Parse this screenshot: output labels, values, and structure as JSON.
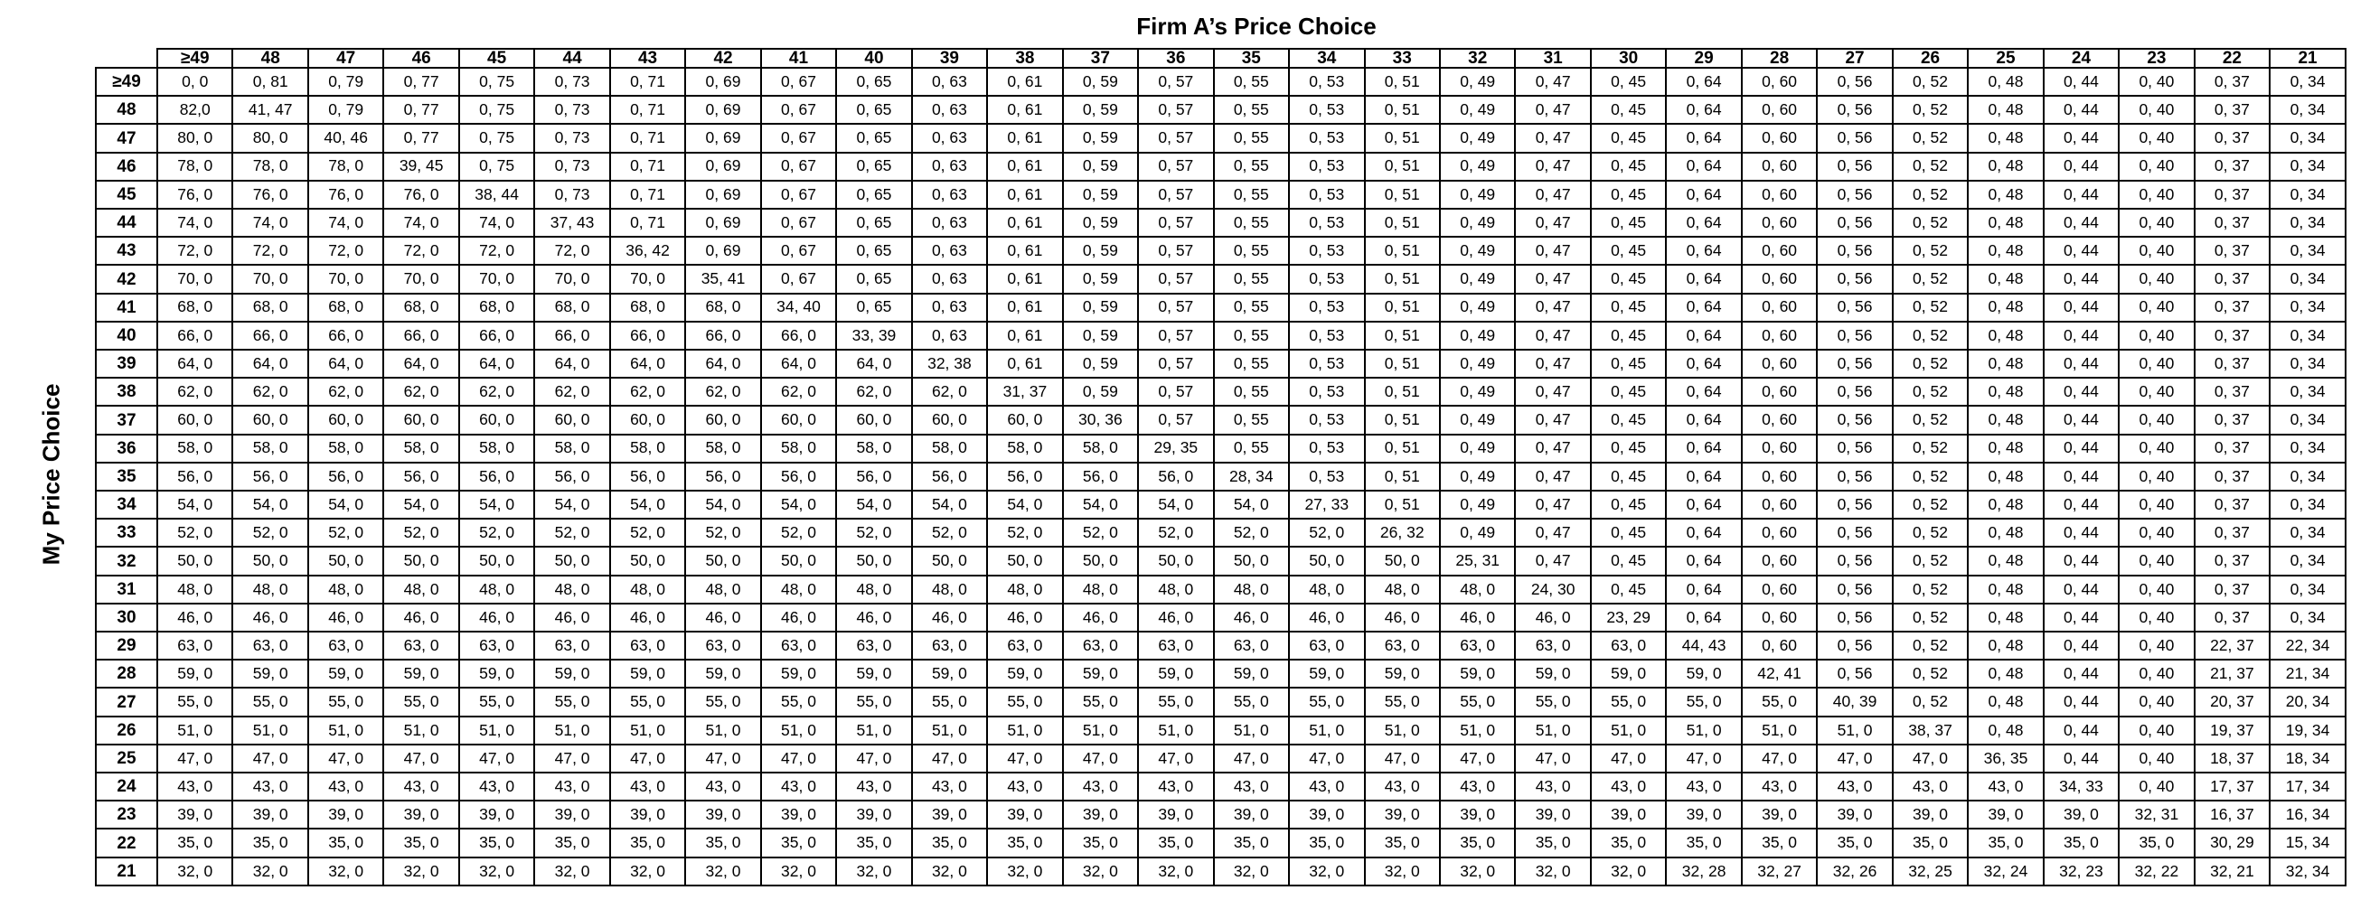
{
  "column_title": "Firm A’s Price Choice",
  "row_title": "My Price Choice",
  "column_headers": [
    "≥49",
    "48",
    "47",
    "46",
    "45",
    "44",
    "43",
    "42",
    "41",
    "40",
    "39",
    "38",
    "37",
    "36",
    "35",
    "34",
    "33",
    "32",
    "31",
    "30",
    "29",
    "28",
    "27",
    "26",
    "25",
    "24",
    "23",
    "22",
    "21"
  ],
  "row_headers": [
    "≥49",
    "48",
    "47",
    "46",
    "45",
    "44",
    "43",
    "42",
    "41",
    "40",
    "39",
    "38",
    "37",
    "36",
    "35",
    "34",
    "33",
    "32",
    "31",
    "30",
    "29",
    "28",
    "27",
    "26",
    "25",
    "24",
    "23",
    "22",
    "21"
  ],
  "rows": [
    [
      "0, 0",
      "0, 81",
      "0, 79",
      "0, 77",
      "0, 75",
      "0, 73",
      "0, 71",
      "0, 69",
      "0, 67",
      "0, 65",
      "0, 63",
      "0, 61",
      "0, 59",
      "0, 57",
      "0, 55",
      "0, 53",
      "0, 51",
      "0, 49",
      "0, 47",
      "0, 45",
      "0, 64",
      "0, 60",
      "0, 56",
      "0, 52",
      "0, 48",
      "0, 44",
      "0, 40",
      "0, 37",
      "0, 34"
    ],
    [
      "82,0",
      "41, 47",
      "0, 79",
      "0, 77",
      "0, 75",
      "0, 73",
      "0, 71",
      "0, 69",
      "0, 67",
      "0, 65",
      "0, 63",
      "0, 61",
      "0, 59",
      "0, 57",
      "0, 55",
      "0, 53",
      "0, 51",
      "0, 49",
      "0, 47",
      "0, 45",
      "0, 64",
      "0, 60",
      "0, 56",
      "0, 52",
      "0, 48",
      "0, 44",
      "0, 40",
      "0, 37",
      "0, 34"
    ],
    [
      "80, 0",
      "80, 0",
      "40, 46",
      "0, 77",
      "0, 75",
      "0, 73",
      "0, 71",
      "0, 69",
      "0, 67",
      "0, 65",
      "0, 63",
      "0, 61",
      "0, 59",
      "0, 57",
      "0, 55",
      "0, 53",
      "0, 51",
      "0, 49",
      "0, 47",
      "0, 45",
      "0, 64",
      "0, 60",
      "0, 56",
      "0, 52",
      "0, 48",
      "0, 44",
      "0, 40",
      "0, 37",
      "0, 34"
    ],
    [
      "78, 0",
      "78, 0",
      "78, 0",
      "39, 45",
      "0, 75",
      "0, 73",
      "0, 71",
      "0, 69",
      "0, 67",
      "0, 65",
      "0, 63",
      "0, 61",
      "0, 59",
      "0, 57",
      "0, 55",
      "0, 53",
      "0, 51",
      "0, 49",
      "0, 47",
      "0, 45",
      "0, 64",
      "0, 60",
      "0, 56",
      "0, 52",
      "0, 48",
      "0, 44",
      "0, 40",
      "0, 37",
      "0, 34"
    ],
    [
      "76, 0",
      "76, 0",
      "76, 0",
      "76, 0",
      "38, 44",
      "0, 73",
      "0, 71",
      "0, 69",
      "0, 67",
      "0, 65",
      "0, 63",
      "0, 61",
      "0, 59",
      "0, 57",
      "0, 55",
      "0, 53",
      "0, 51",
      "0, 49",
      "0, 47",
      "0, 45",
      "0, 64",
      "0, 60",
      "0, 56",
      "0, 52",
      "0, 48",
      "0, 44",
      "0, 40",
      "0, 37",
      "0, 34"
    ],
    [
      "74, 0",
      "74, 0",
      "74, 0",
      "74, 0",
      "74, 0",
      "37, 43",
      "0, 71",
      "0, 69",
      "0, 67",
      "0, 65",
      "0, 63",
      "0, 61",
      "0, 59",
      "0, 57",
      "0, 55",
      "0, 53",
      "0, 51",
      "0, 49",
      "0, 47",
      "0, 45",
      "0, 64",
      "0, 60",
      "0, 56",
      "0, 52",
      "0, 48",
      "0, 44",
      "0, 40",
      "0, 37",
      "0, 34"
    ],
    [
      "72, 0",
      "72, 0",
      "72, 0",
      "72, 0",
      "72, 0",
      "72, 0",
      "36, 42",
      "0, 69",
      "0, 67",
      "0, 65",
      "0, 63",
      "0, 61",
      "0, 59",
      "0, 57",
      "0, 55",
      "0, 53",
      "0, 51",
      "0, 49",
      "0, 47",
      "0, 45",
      "0, 64",
      "0, 60",
      "0, 56",
      "0, 52",
      "0, 48",
      "0, 44",
      "0, 40",
      "0, 37",
      "0, 34"
    ],
    [
      "70, 0",
      "70, 0",
      "70, 0",
      "70, 0",
      "70, 0",
      "70, 0",
      "70, 0",
      "35, 41",
      "0, 67",
      "0, 65",
      "0, 63",
      "0, 61",
      "0, 59",
      "0, 57",
      "0, 55",
      "0, 53",
      "0, 51",
      "0, 49",
      "0, 47",
      "0, 45",
      "0, 64",
      "0, 60",
      "0, 56",
      "0, 52",
      "0, 48",
      "0, 44",
      "0, 40",
      "0, 37",
      "0, 34"
    ],
    [
      "68, 0",
      "68, 0",
      "68, 0",
      "68, 0",
      "68, 0",
      "68, 0",
      "68, 0",
      "68, 0",
      "34, 40",
      "0, 65",
      "0, 63",
      "0, 61",
      "0, 59",
      "0, 57",
      "0, 55",
      "0, 53",
      "0, 51",
      "0, 49",
      "0, 47",
      "0, 45",
      "0, 64",
      "0, 60",
      "0, 56",
      "0, 52",
      "0, 48",
      "0, 44",
      "0, 40",
      "0, 37",
      "0, 34"
    ],
    [
      "66, 0",
      "66, 0",
      "66, 0",
      "66, 0",
      "66, 0",
      "66, 0",
      "66, 0",
      "66, 0",
      "66, 0",
      "33, 39",
      "0, 63",
      "0, 61",
      "0, 59",
      "0, 57",
      "0, 55",
      "0, 53",
      "0, 51",
      "0, 49",
      "0, 47",
      "0, 45",
      "0, 64",
      "0, 60",
      "0, 56",
      "0, 52",
      "0, 48",
      "0, 44",
      "0, 40",
      "0, 37",
      "0, 34"
    ],
    [
      "64, 0",
      "64, 0",
      "64, 0",
      "64, 0",
      "64, 0",
      "64, 0",
      "64, 0",
      "64, 0",
      "64, 0",
      "64, 0",
      "32, 38",
      "0, 61",
      "0, 59",
      "0, 57",
      "0, 55",
      "0, 53",
      "0, 51",
      "0, 49",
      "0, 47",
      "0, 45",
      "0, 64",
      "0, 60",
      "0, 56",
      "0, 52",
      "0, 48",
      "0, 44",
      "0, 40",
      "0, 37",
      "0, 34"
    ],
    [
      "62, 0",
      "62, 0",
      "62, 0",
      "62, 0",
      "62, 0",
      "62, 0",
      "62, 0",
      "62, 0",
      "62, 0",
      "62, 0",
      "62, 0",
      "31, 37",
      "0, 59",
      "0, 57",
      "0, 55",
      "0, 53",
      "0, 51",
      "0, 49",
      "0, 47",
      "0, 45",
      "0, 64",
      "0, 60",
      "0, 56",
      "0, 52",
      "0, 48",
      "0, 44",
      "0, 40",
      "0, 37",
      "0, 34"
    ],
    [
      "60, 0",
      "60, 0",
      "60, 0",
      "60, 0",
      "60, 0",
      "60, 0",
      "60, 0",
      "60, 0",
      "60, 0",
      "60, 0",
      "60, 0",
      "60, 0",
      "30, 36",
      "0, 57",
      "0, 55",
      "0, 53",
      "0, 51",
      "0, 49",
      "0, 47",
      "0, 45",
      "0, 64",
      "0, 60",
      "0, 56",
      "0, 52",
      "0, 48",
      "0, 44",
      "0, 40",
      "0, 37",
      "0, 34"
    ],
    [
      "58, 0",
      "58, 0",
      "58, 0",
      "58, 0",
      "58, 0",
      "58, 0",
      "58, 0",
      "58, 0",
      "58, 0",
      "58, 0",
      "58, 0",
      "58, 0",
      "58, 0",
      "29, 35",
      "0, 55",
      "0, 53",
      "0, 51",
      "0, 49",
      "0, 47",
      "0, 45",
      "0, 64",
      "0, 60",
      "0, 56",
      "0, 52",
      "0, 48",
      "0, 44",
      "0, 40",
      "0, 37",
      "0, 34"
    ],
    [
      "56, 0",
      "56, 0",
      "56, 0",
      "56, 0",
      "56, 0",
      "56, 0",
      "56, 0",
      "56, 0",
      "56, 0",
      "56, 0",
      "56, 0",
      "56, 0",
      "56, 0",
      "56, 0",
      "28, 34",
      "0, 53",
      "0, 51",
      "0, 49",
      "0, 47",
      "0, 45",
      "0, 64",
      "0, 60",
      "0, 56",
      "0, 52",
      "0, 48",
      "0, 44",
      "0, 40",
      "0, 37",
      "0, 34"
    ],
    [
      "54, 0",
      "54, 0",
      "54, 0",
      "54, 0",
      "54, 0",
      "54, 0",
      "54, 0",
      "54, 0",
      "54, 0",
      "54, 0",
      "54, 0",
      "54, 0",
      "54, 0",
      "54, 0",
      "54, 0",
      "27, 33",
      "0, 51",
      "0, 49",
      "0, 47",
      "0, 45",
      "0, 64",
      "0, 60",
      "0, 56",
      "0, 52",
      "0, 48",
      "0, 44",
      "0, 40",
      "0, 37",
      "0, 34"
    ],
    [
      "52, 0",
      "52, 0",
      "52, 0",
      "52, 0",
      "52, 0",
      "52, 0",
      "52, 0",
      "52, 0",
      "52, 0",
      "52, 0",
      "52, 0",
      "52, 0",
      "52, 0",
      "52, 0",
      "52, 0",
      "52, 0",
      "26, 32",
      "0, 49",
      "0, 47",
      "0, 45",
      "0, 64",
      "0, 60",
      "0, 56",
      "0, 52",
      "0, 48",
      "0, 44",
      "0, 40",
      "0, 37",
      "0, 34"
    ],
    [
      "50, 0",
      "50, 0",
      "50, 0",
      "50, 0",
      "50, 0",
      "50, 0",
      "50, 0",
      "50, 0",
      "50, 0",
      "50, 0",
      "50, 0",
      "50, 0",
      "50, 0",
      "50, 0",
      "50, 0",
      "50, 0",
      "50, 0",
      "25, 31",
      "0, 47",
      "0, 45",
      "0, 64",
      "0, 60",
      "0, 56",
      "0, 52",
      "0, 48",
      "0, 44",
      "0, 40",
      "0, 37",
      "0, 34"
    ],
    [
      "48, 0",
      "48, 0",
      "48, 0",
      "48, 0",
      "48, 0",
      "48, 0",
      "48, 0",
      "48, 0",
      "48, 0",
      "48, 0",
      "48, 0",
      "48, 0",
      "48, 0",
      "48, 0",
      "48, 0",
      "48, 0",
      "48, 0",
      "48, 0",
      "24, 30",
      "0, 45",
      "0, 64",
      "0, 60",
      "0, 56",
      "0, 52",
      "0, 48",
      "0, 44",
      "0, 40",
      "0, 37",
      "0, 34"
    ],
    [
      "46, 0",
      "46, 0",
      "46, 0",
      "46, 0",
      "46, 0",
      "46, 0",
      "46, 0",
      "46, 0",
      "46, 0",
      "46, 0",
      "46, 0",
      "46, 0",
      "46, 0",
      "46, 0",
      "46, 0",
      "46, 0",
      "46, 0",
      "46, 0",
      "46, 0",
      "23, 29",
      "0, 64",
      "0, 60",
      "0, 56",
      "0, 52",
      "0, 48",
      "0, 44",
      "0, 40",
      "0, 37",
      "0, 34"
    ],
    [
      "63, 0",
      "63, 0",
      "63, 0",
      "63, 0",
      "63, 0",
      "63, 0",
      "63, 0",
      "63, 0",
      "63, 0",
      "63, 0",
      "63, 0",
      "63, 0",
      "63, 0",
      "63, 0",
      "63, 0",
      "63, 0",
      "63, 0",
      "63, 0",
      "63, 0",
      "63, 0",
      "44, 43",
      "0, 60",
      "0, 56",
      "0, 52",
      "0, 48",
      "0, 44",
      "0, 40",
      "22, 37",
      "22, 34"
    ],
    [
      "59, 0",
      "59, 0",
      "59, 0",
      "59, 0",
      "59, 0",
      "59, 0",
      "59, 0",
      "59, 0",
      "59, 0",
      "59, 0",
      "59, 0",
      "59, 0",
      "59, 0",
      "59, 0",
      "59, 0",
      "59, 0",
      "59, 0",
      "59, 0",
      "59, 0",
      "59, 0",
      "59, 0",
      "42, 41",
      "0, 56",
      "0, 52",
      "0, 48",
      "0, 44",
      "0, 40",
      "21, 37",
      "21, 34"
    ],
    [
      "55, 0",
      "55, 0",
      "55, 0",
      "55, 0",
      "55, 0",
      "55, 0",
      "55, 0",
      "55, 0",
      "55, 0",
      "55, 0",
      "55, 0",
      "55, 0",
      "55, 0",
      "55, 0",
      "55, 0",
      "55, 0",
      "55, 0",
      "55, 0",
      "55, 0",
      "55, 0",
      "55, 0",
      "55, 0",
      "40, 39",
      "0, 52",
      "0, 48",
      "0, 44",
      "0, 40",
      "20, 37",
      "20, 34"
    ],
    [
      "51, 0",
      "51, 0",
      "51, 0",
      "51, 0",
      "51, 0",
      "51, 0",
      "51, 0",
      "51, 0",
      "51, 0",
      "51, 0",
      "51, 0",
      "51, 0",
      "51, 0",
      "51, 0",
      "51, 0",
      "51, 0",
      "51, 0",
      "51, 0",
      "51, 0",
      "51, 0",
      "51, 0",
      "51, 0",
      "51, 0",
      "38, 37",
      "0, 48",
      "0, 44",
      "0, 40",
      "19, 37",
      "19, 34"
    ],
    [
      "47, 0",
      "47, 0",
      "47, 0",
      "47, 0",
      "47, 0",
      "47, 0",
      "47, 0",
      "47, 0",
      "47, 0",
      "47, 0",
      "47, 0",
      "47, 0",
      "47, 0",
      "47, 0",
      "47, 0",
      "47, 0",
      "47, 0",
      "47, 0",
      "47, 0",
      "47, 0",
      "47, 0",
      "47, 0",
      "47, 0",
      "47, 0",
      "36, 35",
      "0, 44",
      "0, 40",
      "18, 37",
      "18, 34"
    ],
    [
      "43, 0",
      "43, 0",
      "43, 0",
      "43, 0",
      "43, 0",
      "43, 0",
      "43, 0",
      "43, 0",
      "43, 0",
      "43, 0",
      "43, 0",
      "43, 0",
      "43, 0",
      "43, 0",
      "43, 0",
      "43, 0",
      "43, 0",
      "43, 0",
      "43, 0",
      "43, 0",
      "43, 0",
      "43, 0",
      "43, 0",
      "43, 0",
      "43, 0",
      "34, 33",
      "0, 40",
      "17, 37",
      "17, 34"
    ],
    [
      "39, 0",
      "39, 0",
      "39, 0",
      "39, 0",
      "39, 0",
      "39, 0",
      "39, 0",
      "39, 0",
      "39, 0",
      "39, 0",
      "39, 0",
      "39, 0",
      "39, 0",
      "39, 0",
      "39, 0",
      "39, 0",
      "39, 0",
      "39, 0",
      "39, 0",
      "39, 0",
      "39, 0",
      "39, 0",
      "39, 0",
      "39, 0",
      "39, 0",
      "39, 0",
      "32, 31",
      "16, 37",
      "16, 34"
    ],
    [
      "35, 0",
      "35, 0",
      "35, 0",
      "35, 0",
      "35, 0",
      "35, 0",
      "35, 0",
      "35, 0",
      "35, 0",
      "35, 0",
      "35, 0",
      "35, 0",
      "35, 0",
      "35, 0",
      "35, 0",
      "35, 0",
      "35, 0",
      "35, 0",
      "35, 0",
      "35, 0",
      "35, 0",
      "35, 0",
      "35, 0",
      "35, 0",
      "35, 0",
      "35, 0",
      "35, 0",
      "30, 29",
      "15, 34"
    ],
    [
      "32, 0",
      "32, 0",
      "32, 0",
      "32, 0",
      "32, 0",
      "32, 0",
      "32, 0",
      "32, 0",
      "32, 0",
      "32, 0",
      "32, 0",
      "32, 0",
      "32, 0",
      "32, 0",
      "32, 0",
      "32, 0",
      "32, 0",
      "32, 0",
      "32, 0",
      "32, 0",
      "32, 28",
      "32, 27",
      "32, 26",
      "32, 25",
      "32, 24",
      "32, 23",
      "32, 22",
      "32, 21",
      "32, 34"
    ]
  ]
}
